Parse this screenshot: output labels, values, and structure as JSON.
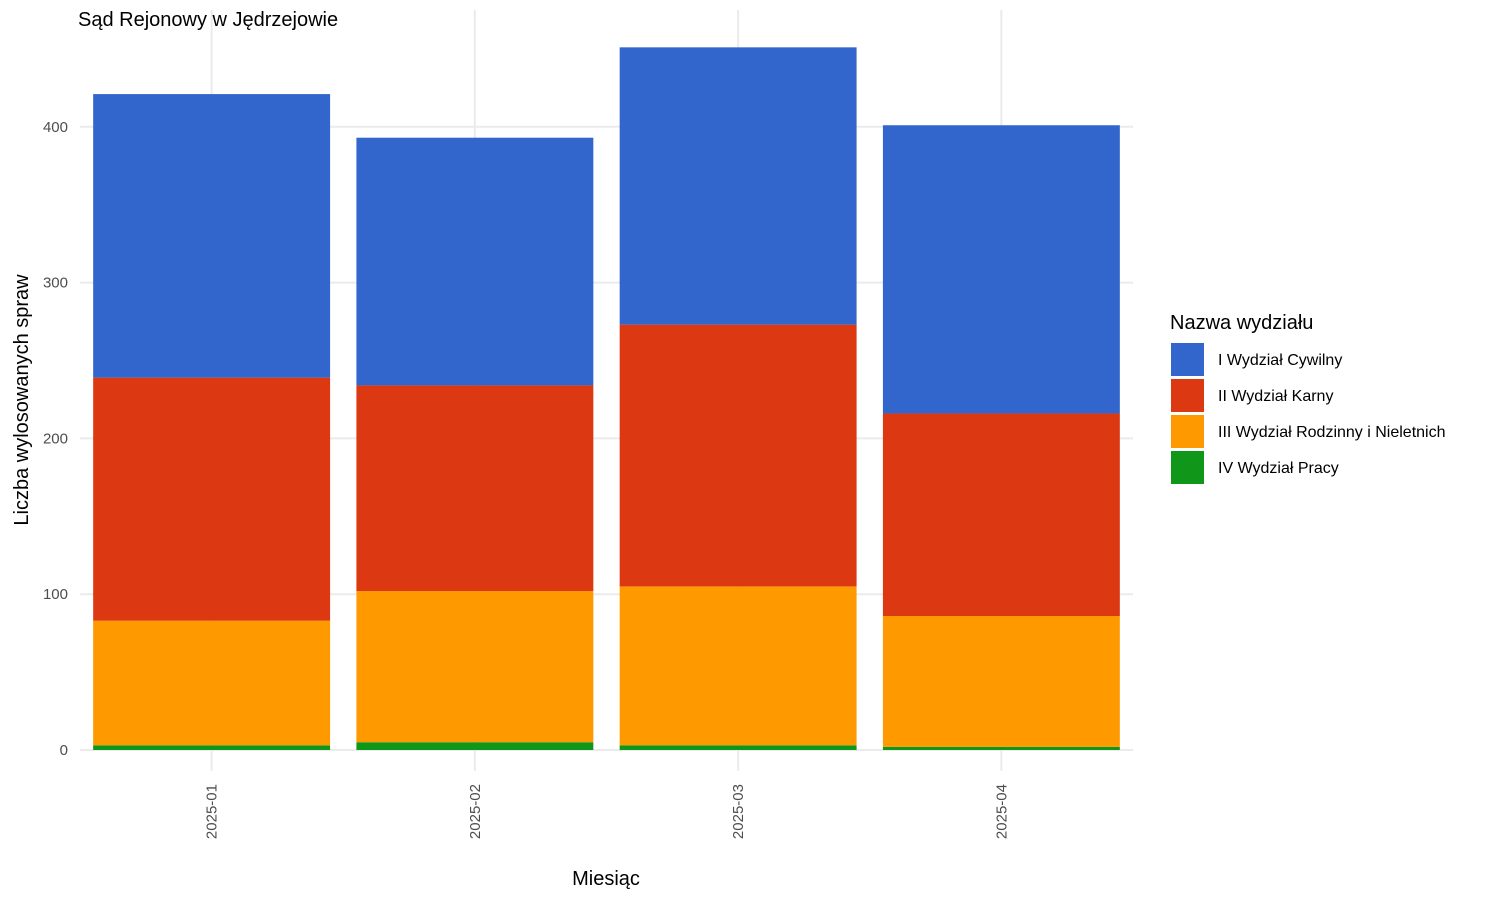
{
  "chart_data": {
    "type": "bar",
    "stacked": true,
    "title": "Sąd Rejonowy w Jędrzejowie",
    "xlabel": "Miesiąc",
    "ylabel": "Liczba wylosowanych spraw",
    "categories": [
      "2025-01",
      "2025-02",
      "2025-03",
      "2025-04"
    ],
    "ylim": [
      0,
      460
    ],
    "yticks": [
      0,
      100,
      200,
      300,
      400
    ],
    "grid": true,
    "legend": {
      "title": "Nazwa wydziału",
      "position": "right"
    },
    "series": [
      {
        "name": "IV Wydział Pracy",
        "color": "#109618",
        "values": [
          3,
          5,
          3,
          2
        ]
      },
      {
        "name": "III Wydział Rodzinny i Nieletnich",
        "color": "#ff9900",
        "values": [
          80,
          97,
          102,
          84
        ]
      },
      {
        "name": "II Wydział Karny",
        "color": "#dc3912",
        "values": [
          156,
          132,
          168,
          130
        ]
      },
      {
        "name": "I Wydział Cywilny",
        "color": "#3366cc",
        "values": [
          182,
          159,
          178,
          185
        ]
      }
    ],
    "legend_order": [
      "I Wydział Cywilny",
      "II Wydział Karny",
      "III Wydział Rodzinny i Nieletnich",
      "IV Wydział Pracy"
    ]
  }
}
